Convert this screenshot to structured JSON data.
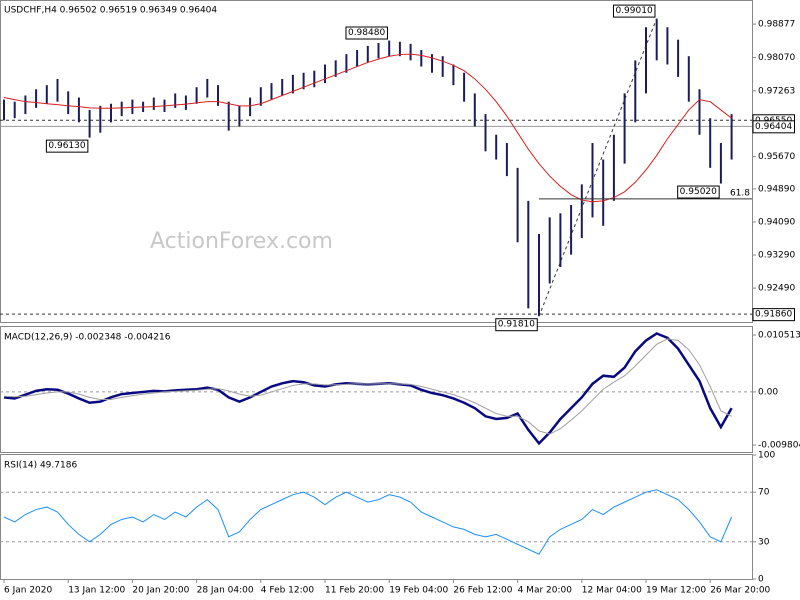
{
  "chart_data": [
    {
      "type": "hlbar",
      "title": "USDCHF,H4  0.96502 0.96519 0.96349 0.96404",
      "watermark": "ActionForex.com",
      "color": "#1c1c5c",
      "high": [
        0.9705,
        0.97,
        0.9715,
        0.973,
        0.974,
        0.9755,
        0.9725,
        0.971,
        0.968,
        0.969,
        0.9695,
        0.97,
        0.9705,
        0.97,
        0.971,
        0.9705,
        0.972,
        0.9715,
        0.9735,
        0.9755,
        0.974,
        0.97,
        0.969,
        0.971,
        0.9735,
        0.9745,
        0.9755,
        0.9765,
        0.977,
        0.9775,
        0.979,
        0.98,
        0.9815,
        0.9825,
        0.9835,
        0.9842,
        0.9848,
        0.9845,
        0.984,
        0.9825,
        0.9815,
        0.981,
        0.979,
        0.977,
        0.972,
        0.967,
        0.962,
        0.96,
        0.954,
        0.946,
        0.938,
        0.942,
        0.943,
        0.945,
        0.95,
        0.96,
        0.956,
        0.962,
        0.972,
        0.98,
        0.988,
        0.9901,
        0.988,
        0.985,
        0.981,
        0.973,
        0.966,
        0.96,
        0.967
      ],
      "low": [
        0.9655,
        0.966,
        0.967,
        0.9685,
        0.9695,
        0.97,
        0.967,
        0.965,
        0.9613,
        0.9625,
        0.965,
        0.9665,
        0.967,
        0.9675,
        0.968,
        0.9675,
        0.9685,
        0.968,
        0.9695,
        0.971,
        0.969,
        0.963,
        0.964,
        0.9665,
        0.969,
        0.9705,
        0.9715,
        0.972,
        0.973,
        0.9735,
        0.9745,
        0.976,
        0.977,
        0.9785,
        0.9795,
        0.9805,
        0.981,
        0.981,
        0.98,
        0.9785,
        0.977,
        0.976,
        0.974,
        0.97,
        0.964,
        0.958,
        0.956,
        0.952,
        0.936,
        0.92,
        0.9181,
        0.926,
        0.93,
        0.933,
        0.937,
        0.942,
        0.94,
        0.946,
        0.955,
        0.965,
        0.972,
        0.98,
        0.979,
        0.976,
        0.97,
        0.962,
        0.954,
        0.9502,
        0.956
      ],
      "ma": {
        "color": "#d62020",
        "values": [
          0.971,
          0.9705,
          0.97,
          0.9698,
          0.9695,
          0.9693,
          0.969,
          0.9688,
          0.9685,
          0.9684,
          0.9684,
          0.9685,
          0.9686,
          0.9687,
          0.9688,
          0.969,
          0.9692,
          0.9694,
          0.9697,
          0.97,
          0.97,
          0.9695,
          0.969,
          0.969,
          0.9695,
          0.9705,
          0.9715,
          0.9725,
          0.9735,
          0.9745,
          0.9755,
          0.9765,
          0.9775,
          0.9785,
          0.9795,
          0.9803,
          0.981,
          0.9814,
          0.9815,
          0.9812,
          0.9806,
          0.9798,
          0.9788,
          0.9775,
          0.9755,
          0.973,
          0.97,
          0.9665,
          0.9625,
          0.9585,
          0.955,
          0.952,
          0.9495,
          0.9475,
          0.9462,
          0.9458,
          0.946,
          0.9468,
          0.9482,
          0.9505,
          0.9535,
          0.957,
          0.961,
          0.9645,
          0.968,
          0.9705,
          0.97,
          0.968,
          0.966
        ]
      },
      "ylim": [
        0.9167,
        0.9946
      ],
      "yticks": [
        0.98877,
        {
          "value": 0.9807,
          "label": "0.98070"
        },
        0.97263,
        {
          "value": 0.9567,
          "label": "0.95670"
        },
        {
          "value": 0.9489,
          "label": "0.94890"
        },
        {
          "value": 0.9409,
          "label": "0.94090"
        },
        {
          "value": 0.9329,
          "label": "0.93290"
        },
        {
          "value": 0.9249,
          "label": "0.92490"
        }
      ],
      "levels": [
        {
          "value": 0.9655,
          "label": "0.96550",
          "style": "dashed"
        },
        {
          "value": 0.96404,
          "label": "0.96404",
          "style": "solid"
        },
        {
          "value": 0.9186,
          "label": "0.91860",
          "style": "dashed"
        }
      ],
      "fib": {
        "value": 0.9465,
        "label": "61.8"
      },
      "annotations": [
        {
          "value": 0.9613,
          "label": "0.96130"
        },
        {
          "value": 0.9848,
          "label": "0.98480"
        },
        {
          "value": 0.9901,
          "label": "0.99010"
        },
        {
          "value": 0.9502,
          "label": "0.95020"
        },
        {
          "value": 0.9181,
          "label": "0.91810"
        }
      ]
    },
    {
      "type": "line",
      "title": "MACD(12,26,9) -0.002348 -0.004216",
      "series": [
        {
          "color": "#0a0a80",
          "width": 2.5,
          "values": [
            -0.001,
            -0.0012,
            -0.0005,
            0.0002,
            0.0005,
            0.0004,
            -0.0003,
            -0.0012,
            -0.002,
            -0.0018,
            -0.001,
            -0.0004,
            -0.0002,
            0.0,
            0.0002,
            0.0001,
            0.0003,
            0.0004,
            0.0005,
            0.0008,
            0.0004,
            -0.001,
            -0.0018,
            -0.001,
            0.0,
            0.001,
            0.0016,
            0.002,
            0.0018,
            0.0012,
            0.001,
            0.0014,
            0.0016,
            0.0015,
            0.0014,
            0.0015,
            0.0016,
            0.0014,
            0.0012,
            0.0004,
            -0.0002,
            -0.0006,
            -0.0012,
            -0.002,
            -0.003,
            -0.0045,
            -0.005,
            -0.0048,
            -0.004,
            -0.007,
            -0.0095,
            -0.0075,
            -0.005,
            -0.003,
            -0.001,
            0.0015,
            0.003,
            0.0028,
            0.0045,
            0.0075,
            0.0095,
            0.0108,
            0.01,
            0.008,
            0.005,
            0.002,
            -0.003,
            -0.0065,
            -0.003
          ]
        },
        {
          "color": "#a0a0a0",
          "width": 1,
          "values": [
            -0.0008,
            -0.0009,
            -0.0008,
            -0.0005,
            -0.0002,
            0.0,
            0.0,
            -0.0004,
            -0.001,
            -0.0014,
            -0.0014,
            -0.001,
            -0.0007,
            -0.0004,
            -0.0002,
            0.0,
            0.0001,
            0.0002,
            0.0003,
            0.0005,
            0.0006,
            0.0002,
            -0.0004,
            -0.0008,
            -0.0006,
            0.0,
            0.0006,
            0.0012,
            0.0015,
            0.0015,
            0.0013,
            0.0013,
            0.0014,
            0.0015,
            0.0015,
            0.0015,
            0.0015,
            0.0015,
            0.0014,
            0.001,
            0.0005,
            0.0,
            -0.0005,
            -0.0012,
            -0.002,
            -0.003,
            -0.004,
            -0.0045,
            -0.0045,
            -0.0055,
            -0.0072,
            -0.0078,
            -0.0068,
            -0.0052,
            -0.0035,
            -0.0015,
            0.0005,
            0.0018,
            0.003,
            0.0048,
            0.0068,
            0.0088,
            0.0098,
            0.0095,
            0.0078,
            0.005,
            0.001,
            -0.0035,
            -0.0045
          ]
        }
      ],
      "ylim": [
        -0.0111,
        0.012
      ],
      "yticks": [
        0.010513,
        {
          "value": 0,
          "label": "0.00"
        },
        -0.009804
      ],
      "levels": [
        0
      ]
    },
    {
      "type": "line",
      "title": "RSI(14) 49.7186",
      "categories": [
        "6 Jan 2020",
        null,
        null,
        null,
        null,
        null,
        "13 Jan 12:00",
        null,
        null,
        null,
        null,
        null,
        "20 Jan 20:00",
        null,
        null,
        null,
        null,
        null,
        "28 Jan 04:00",
        null,
        null,
        null,
        null,
        null,
        "4 Feb 12:00",
        null,
        null,
        null,
        null,
        null,
        "11 Feb 20:00",
        null,
        null,
        null,
        null,
        null,
        "19 Feb 04:00",
        null,
        null,
        null,
        null,
        null,
        "26 Feb 12:00",
        null,
        null,
        null,
        null,
        null,
        "4 Mar 20:00",
        null,
        null,
        null,
        null,
        null,
        "12 Mar 04:00",
        null,
        null,
        null,
        null,
        null,
        "19 Mar 12:00",
        null,
        null,
        null,
        null,
        null,
        "26 Mar 20:00",
        null,
        null
      ],
      "series": [
        {
          "color": "#1e8fff",
          "width": 1,
          "values": [
            50,
            46,
            52,
            56,
            58,
            54,
            44,
            36,
            30,
            36,
            44,
            48,
            50,
            46,
            52,
            48,
            54,
            50,
            58,
            64,
            56,
            34,
            38,
            48,
            56,
            60,
            64,
            68,
            70,
            66,
            60,
            66,
            70,
            66,
            62,
            64,
            68,
            66,
            62,
            54,
            50,
            46,
            42,
            40,
            36,
            34,
            36,
            32,
            28,
            24,
            20,
            34,
            40,
            44,
            48,
            56,
            52,
            58,
            62,
            66,
            70,
            72,
            68,
            64,
            56,
            46,
            34,
            30,
            50
          ]
        }
      ],
      "ylim": [
        0,
        100
      ],
      "yticks": [
        100,
        70,
        30,
        0
      ],
      "levels": [
        70,
        30
      ]
    }
  ]
}
